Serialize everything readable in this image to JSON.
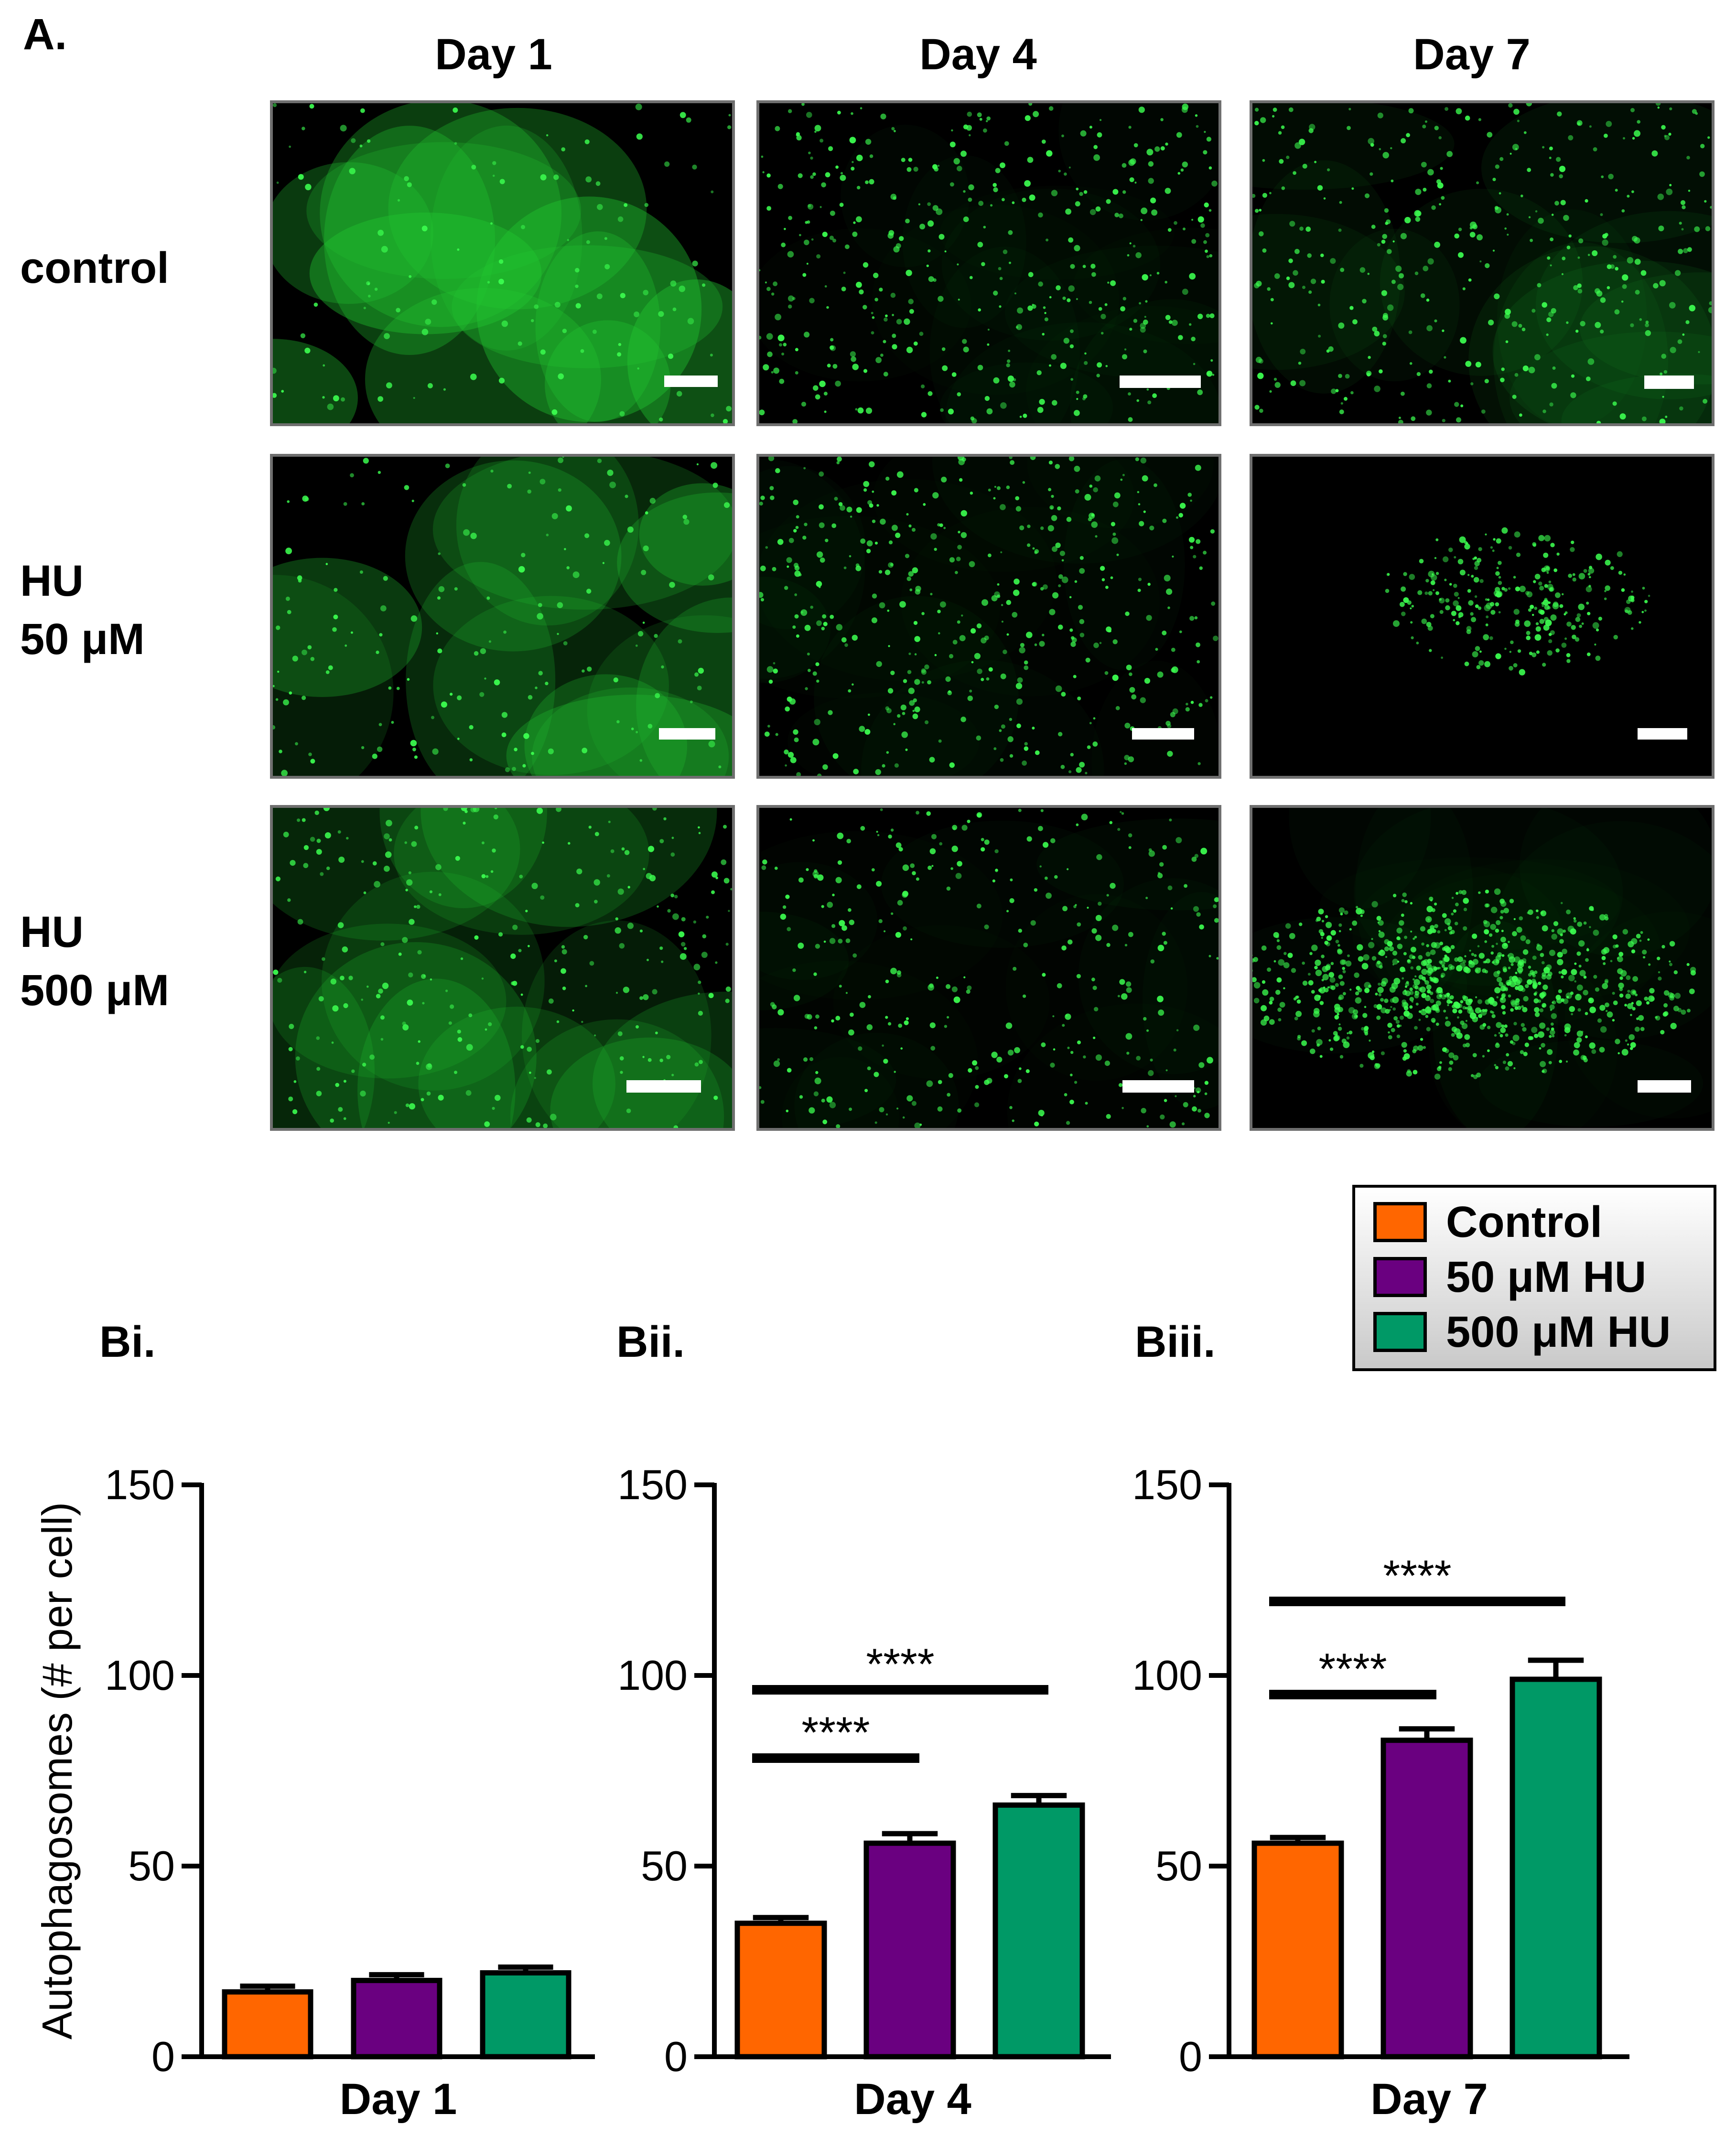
{
  "panel_a": {
    "label": "A.",
    "columns": [
      "Day 1",
      "Day 4",
      "Day 7"
    ],
    "rows": [
      {
        "lines": [
          "control"
        ]
      },
      {
        "lines": [
          "HU",
          "50 μM"
        ]
      },
      {
        "lines": [
          "HU",
          "500 μM"
        ]
      }
    ],
    "image_tint": "#22c832",
    "scalebar_color": "#ffffff"
  },
  "legend": {
    "items": [
      {
        "label": "Control",
        "color": "#ff6600"
      },
      {
        "label": "50 μM HU",
        "color": "#6a0080"
      },
      {
        "label": "500 μM HU",
        "color": "#009966"
      }
    ]
  },
  "chart_data": [
    {
      "type": "bar",
      "panel_label": "Bi.",
      "categories": [
        "Control",
        "50 μM HU",
        "500 μM HU"
      ],
      "values": [
        17,
        20,
        22
      ],
      "errors": [
        1.5,
        1.5,
        1.5
      ],
      "colors": [
        "#ff6600",
        "#6a0080",
        "#009966"
      ],
      "xlabel": "Day 1",
      "ylabel": "Autophagosomes (# per cell)",
      "ylim": [
        0,
        150
      ],
      "yticks": [
        "0",
        "50",
        "100",
        "150"
      ],
      "significance": []
    },
    {
      "type": "bar",
      "panel_label": "Bii.",
      "categories": [
        "Control",
        "50 μM HU",
        "500 μM HU"
      ],
      "values": [
        35,
        56,
        66
      ],
      "errors": [
        1.5,
        2.5,
        2.5
      ],
      "colors": [
        "#ff6600",
        "#6a0080",
        "#009966"
      ],
      "xlabel": "Day 4",
      "ylabel": "",
      "ylim": [
        0,
        150
      ],
      "yticks": [
        "0",
        "50",
        "100",
        "150"
      ],
      "significance": [
        {
          "from": 0,
          "to": 1,
          "label": "****",
          "level": 1
        },
        {
          "from": 0,
          "to": 2,
          "label": "****",
          "level": 2
        }
      ]
    },
    {
      "type": "bar",
      "panel_label": "Biii.",
      "categories": [
        "Control",
        "50 μM HU",
        "500 μM HU"
      ],
      "values": [
        56,
        83,
        99
      ],
      "errors": [
        1.5,
        3,
        5
      ],
      "colors": [
        "#ff6600",
        "#6a0080",
        "#009966"
      ],
      "xlabel": "Day 7",
      "ylabel": "",
      "ylim": [
        0,
        150
      ],
      "yticks": [
        "0",
        "50",
        "100",
        "150"
      ],
      "significance": [
        {
          "from": 0,
          "to": 1,
          "label": "****",
          "level": 1
        },
        {
          "from": 0,
          "to": 2,
          "label": "****",
          "level": 2
        }
      ]
    }
  ]
}
